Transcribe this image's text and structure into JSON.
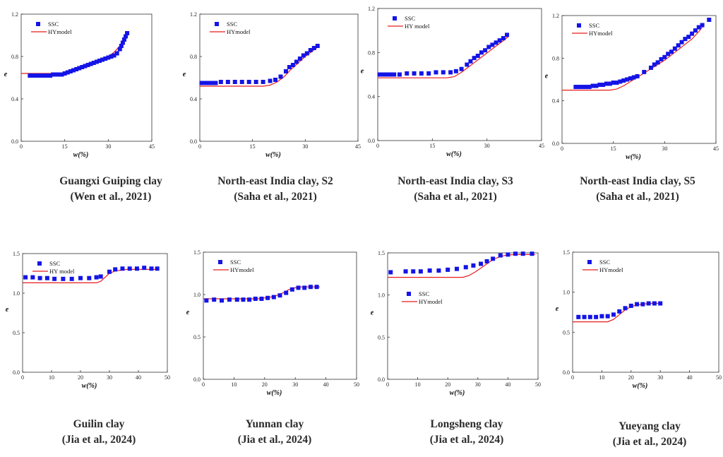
{
  "colors": {
    "ssc": "#1414e6",
    "model": "#e81c1c",
    "axis": "#333333"
  },
  "chart_data": [
    {
      "type": "scatter",
      "xlabel": "w(%)",
      "ylabel": "e",
      "xlim": [
        0,
        45
      ],
      "ylim": [
        0,
        1.2
      ],
      "xticks": [
        "0",
        "15",
        "30",
        "45"
      ],
      "yticks": [
        "0.0",
        "0.4",
        "0.8",
        "1.2"
      ],
      "caption": [
        "Guangxi Guiping clay",
        "(Wen et al., 2021)"
      ],
      "legend": {
        "position": "top-left",
        "ssc": "SSC",
        "model": "HYmodel"
      },
      "series": [
        {
          "name": "SSC",
          "kind": "points",
          "x": [
            3,
            4,
            5,
            6,
            7,
            8,
            9,
            10,
            11,
            12,
            13,
            14,
            15,
            16,
            17,
            18,
            19,
            20,
            21,
            22,
            23,
            24,
            25,
            26,
            27,
            28,
            29,
            30,
            31,
            32,
            33,
            34,
            34.5,
            35,
            35.5,
            36,
            36.5
          ],
          "y": [
            0.62,
            0.62,
            0.62,
            0.62,
            0.62,
            0.62,
            0.62,
            0.62,
            0.63,
            0.63,
            0.63,
            0.63,
            0.64,
            0.65,
            0.66,
            0.67,
            0.68,
            0.69,
            0.7,
            0.71,
            0.72,
            0.73,
            0.74,
            0.75,
            0.76,
            0.77,
            0.78,
            0.79,
            0.8,
            0.81,
            0.83,
            0.87,
            0.9,
            0.93,
            0.96,
            0.99,
            1.02
          ]
        },
        {
          "name": "HYmodel",
          "kind": "line",
          "x": [
            0,
            14,
            16,
            20,
            24,
            28,
            30,
            32,
            34,
            36,
            37
          ],
          "y": [
            0.64,
            0.64,
            0.65,
            0.68,
            0.72,
            0.77,
            0.8,
            0.84,
            0.9,
            0.99,
            1.03
          ]
        }
      ]
    },
    {
      "type": "scatter",
      "xlabel": "w(%)",
      "ylabel": "e",
      "xlim": [
        0,
        45
      ],
      "ylim": [
        0,
        1.2
      ],
      "xticks": [
        "0",
        "15",
        "30",
        "45"
      ],
      "yticks": [
        "0.0",
        "0.4",
        "0.8",
        "1.2"
      ],
      "caption": [
        "North-east India clay, S2",
        "(Saha et al., 2021)"
      ],
      "legend": {
        "position": "top-left",
        "ssc": "SSC",
        "model": "HYmodel"
      },
      "series": [
        {
          "name": "SSC",
          "kind": "points",
          "x": [
            0.5,
            1.5,
            2.5,
            3.5,
            4.5,
            6,
            8,
            10,
            12,
            14,
            16,
            18,
            20,
            21.5,
            23,
            24.5,
            25.5,
            26.5,
            27.5,
            28.5,
            29.5,
            30.5,
            31.5,
            32.5,
            33.5
          ],
          "y": [
            0.55,
            0.55,
            0.55,
            0.55,
            0.55,
            0.56,
            0.56,
            0.56,
            0.56,
            0.56,
            0.56,
            0.56,
            0.57,
            0.58,
            0.61,
            0.66,
            0.7,
            0.72,
            0.75,
            0.78,
            0.81,
            0.83,
            0.86,
            0.88,
            0.9
          ]
        },
        {
          "name": "HYmodel",
          "kind": "line",
          "x": [
            0,
            18,
            20,
            22,
            24,
            26,
            28,
            30,
            32,
            34
          ],
          "y": [
            0.52,
            0.52,
            0.53,
            0.56,
            0.61,
            0.68,
            0.74,
            0.8,
            0.85,
            0.9
          ]
        }
      ]
    },
    {
      "type": "scatter",
      "xlabel": "w(%)",
      "ylabel": "e",
      "xlim": [
        0,
        45
      ],
      "ylim": [
        0,
        1.2
      ],
      "xticks": [
        "0",
        "15",
        "30",
        "45"
      ],
      "yticks": [
        "0.0",
        "0.4",
        "0.8",
        "1.2"
      ],
      "caption": [
        "North-east India clay, S3",
        "(Saha et al., 2021)"
      ],
      "legend": {
        "position": "top-left",
        "ssc": "SSC",
        "model": "HY model"
      },
      "series": [
        {
          "name": "SSC",
          "kind": "points",
          "x": [
            0.5,
            1.5,
            2.5,
            3.5,
            4.5,
            6,
            8,
            10,
            12,
            14,
            16,
            18,
            20,
            21.5,
            23,
            24.5,
            25.5,
            26.5,
            27.5,
            28.5,
            29.5,
            30.5,
            31.5,
            32.5,
            33.5,
            34.5,
            35.5
          ],
          "y": [
            0.6,
            0.6,
            0.6,
            0.6,
            0.6,
            0.6,
            0.61,
            0.61,
            0.61,
            0.61,
            0.62,
            0.62,
            0.62,
            0.63,
            0.65,
            0.69,
            0.72,
            0.75,
            0.77,
            0.8,
            0.82,
            0.85,
            0.87,
            0.89,
            0.91,
            0.93,
            0.96
          ]
        },
        {
          "name": "HY model",
          "kind": "line",
          "x": [
            0,
            19,
            21,
            23,
            25,
            27,
            29,
            31,
            33,
            35,
            36
          ],
          "y": [
            0.57,
            0.57,
            0.58,
            0.62,
            0.67,
            0.72,
            0.77,
            0.82,
            0.87,
            0.92,
            0.95
          ]
        }
      ]
    },
    {
      "type": "scatter",
      "xlabel": "w(%)",
      "ylabel": "e",
      "xlim": [
        0,
        45
      ],
      "ylim": [
        0,
        1.2
      ],
      "xticks": [
        "0",
        "15",
        "30",
        "45"
      ],
      "yticks": [
        "0.0",
        "0.4",
        "0.8",
        "1.2"
      ],
      "caption": [
        "North-east India clay, S5",
        "(Saha et al., 2021)"
      ],
      "legend": {
        "position": "top-left",
        "ssc": "SSC",
        "model": "HYmodel"
      },
      "series": [
        {
          "name": "SSC",
          "kind": "points",
          "x": [
            4,
            5,
            6,
            7,
            8,
            9,
            10,
            11,
            12,
            13,
            14,
            15,
            16,
            17,
            18,
            19,
            20,
            21,
            22,
            24,
            26,
            27,
            28,
            29,
            30,
            31,
            32,
            33,
            34,
            35,
            36,
            37,
            38,
            39,
            40,
            41,
            43
          ],
          "y": [
            0.53,
            0.53,
            0.53,
            0.53,
            0.53,
            0.54,
            0.54,
            0.55,
            0.55,
            0.56,
            0.56,
            0.57,
            0.57,
            0.58,
            0.59,
            0.6,
            0.61,
            0.62,
            0.63,
            0.67,
            0.71,
            0.74,
            0.76,
            0.79,
            0.81,
            0.84,
            0.86,
            0.89,
            0.92,
            0.95,
            0.98,
            1.0,
            1.03,
            1.06,
            1.09,
            1.11,
            1.16
          ]
        },
        {
          "name": "HYmodel",
          "kind": "line",
          "x": [
            0,
            14,
            16,
            18,
            20,
            22,
            24,
            26,
            28,
            30,
            32,
            34,
            36,
            38,
            40,
            41
          ],
          "y": [
            0.5,
            0.5,
            0.51,
            0.54,
            0.58,
            0.62,
            0.66,
            0.7,
            0.74,
            0.78,
            0.83,
            0.88,
            0.93,
            0.98,
            1.05,
            1.09
          ]
        }
      ]
    },
    {
      "type": "scatter",
      "xlabel": "w(%)",
      "ylabel": "e",
      "xlim": [
        0,
        50
      ],
      "ylim": [
        0,
        1.5
      ],
      "xticks": [
        "0",
        "10",
        "20",
        "30",
        "40",
        "50"
      ],
      "yticks": [
        "0.0",
        "0.5",
        "1.0",
        "1.5"
      ],
      "caption": [
        "Guilin clay",
        "(Jia et al., 2024)"
      ],
      "legend": {
        "position": "top-left",
        "ssc": "SSC",
        "model": "HY model"
      },
      "series": [
        {
          "name": "SSC",
          "kind": "points",
          "x": [
            1,
            3.5,
            6,
            8.5,
            11,
            14,
            17,
            20,
            23,
            25.5,
            27,
            30,
            32,
            34.5,
            37,
            39.5,
            42,
            44.5,
            46.5
          ],
          "y": [
            1.2,
            1.2,
            1.19,
            1.19,
            1.18,
            1.18,
            1.18,
            1.19,
            1.19,
            1.2,
            1.21,
            1.27,
            1.3,
            1.31,
            1.31,
            1.31,
            1.32,
            1.31,
            1.31
          ]
        },
        {
          "name": "HY model",
          "kind": "line",
          "x": [
            0,
            25.5,
            27,
            28.5,
            30,
            32,
            34,
            36,
            40,
            45,
            46
          ],
          "y": [
            1.13,
            1.13,
            1.15,
            1.2,
            1.25,
            1.28,
            1.29,
            1.3,
            1.3,
            1.3,
            1.3
          ]
        }
      ]
    },
    {
      "type": "scatter",
      "xlabel": "w(%)",
      "ylabel": "e",
      "xlim": [
        0,
        50
      ],
      "ylim": [
        0,
        1.5
      ],
      "xticks": [
        "0",
        "10",
        "20",
        "30",
        "40",
        "50"
      ],
      "yticks": [
        "0.0",
        "0.5",
        "1.0",
        "1.5"
      ],
      "caption": [
        "Yunnan clay",
        "(Jia et al., 2024)"
      ],
      "legend": {
        "position": "top-left",
        "ssc": "SSC",
        "model": "HYmodel"
      },
      "series": [
        {
          "name": "SSC",
          "kind": "points",
          "x": [
            1,
            3.5,
            6,
            8.5,
            11,
            13,
            15,
            17,
            19,
            21,
            23,
            25,
            27,
            29,
            31,
            33,
            35,
            37
          ],
          "y": [
            0.93,
            0.94,
            0.93,
            0.94,
            0.94,
            0.94,
            0.94,
            0.95,
            0.95,
            0.96,
            0.97,
            0.99,
            1.02,
            1.06,
            1.08,
            1.08,
            1.09,
            1.09
          ]
        },
        {
          "name": "HYmodel",
          "kind": "line",
          "x": [
            0,
            18,
            20,
            22,
            24,
            26,
            28,
            30,
            32,
            34,
            36,
            38
          ],
          "y": [
            0.95,
            0.95,
            0.96,
            0.97,
            0.99,
            1.02,
            1.06,
            1.08,
            1.09,
            1.09,
            1.09,
            1.09
          ]
        }
      ]
    },
    {
      "type": "scatter",
      "xlabel": "w(%)",
      "ylabel": "e",
      "xlim": [
        0,
        50
      ],
      "ylim": [
        0,
        1.5
      ],
      "xticks": [
        "0",
        "10",
        "20",
        "30",
        "40",
        "50"
      ],
      "yticks": [
        "0.0",
        "0.5",
        "1.0",
        "1.5"
      ],
      "caption": [
        "Longsheng clay",
        "(Jia et al., 2024)"
      ],
      "legend": {
        "position": "middle-left",
        "ssc": "SSC",
        "model": "HYmodel"
      },
      "series": [
        {
          "name": "SSC",
          "kind": "points",
          "x": [
            1,
            6,
            8.5,
            11,
            14,
            17,
            20,
            23,
            26,
            28.5,
            31,
            33,
            35,
            37.5,
            40,
            42.5,
            45,
            48
          ],
          "y": [
            1.27,
            1.28,
            1.28,
            1.28,
            1.29,
            1.29,
            1.3,
            1.31,
            1.33,
            1.35,
            1.37,
            1.4,
            1.43,
            1.47,
            1.48,
            1.49,
            1.49,
            1.49
          ]
        },
        {
          "name": "HYmodel",
          "kind": "line",
          "x": [
            0,
            25,
            27,
            29,
            31,
            33,
            35,
            37,
            39,
            42,
            45,
            49
          ],
          "y": [
            1.21,
            1.21,
            1.23,
            1.27,
            1.32,
            1.37,
            1.42,
            1.45,
            1.47,
            1.48,
            1.48,
            1.48
          ]
        }
      ]
    },
    {
      "type": "scatter",
      "xlabel": "w(%)",
      "ylabel": "e",
      "xlim": [
        0,
        50
      ],
      "ylim": [
        0,
        1.5
      ],
      "xticks": [
        "0",
        "10",
        "20",
        "30",
        "40",
        "50"
      ],
      "yticks": [
        "0.0",
        "0.5",
        "1.0",
        "1.5"
      ],
      "caption": [
        "Yueyang clay",
        "(Jia et al., 2024)"
      ],
      "legend": {
        "position": "top-left",
        "ssc": "SSC",
        "model": "HYmodel"
      },
      "series": [
        {
          "name": "SSC",
          "kind": "points",
          "x": [
            2,
            4,
            6,
            8,
            10,
            12,
            14,
            16,
            18,
            20,
            22,
            24,
            26,
            28,
            30
          ],
          "y": [
            0.69,
            0.69,
            0.69,
            0.69,
            0.7,
            0.7,
            0.72,
            0.76,
            0.8,
            0.83,
            0.85,
            0.85,
            0.86,
            0.86,
            0.86
          ]
        },
        {
          "name": "HYmodel",
          "kind": "line",
          "x": [
            0,
            12,
            14,
            16,
            18,
            20,
            22,
            24,
            26,
            28,
            30
          ],
          "y": [
            0.63,
            0.63,
            0.66,
            0.72,
            0.78,
            0.82,
            0.84,
            0.85,
            0.86,
            0.86,
            0.86
          ]
        }
      ]
    }
  ]
}
